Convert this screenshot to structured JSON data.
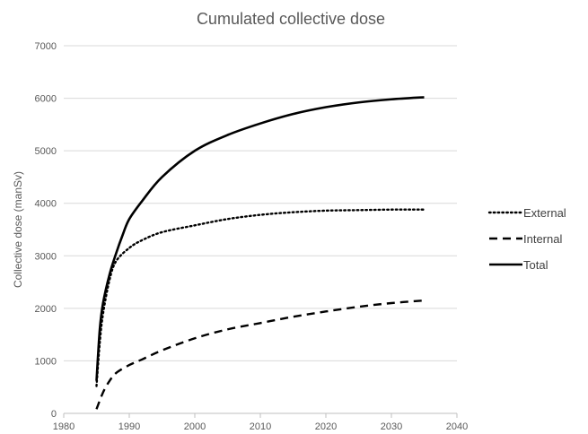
{
  "chart_data": {
    "type": "line",
    "title": "Cumulated collective dose",
    "xlabel": "",
    "ylabel": "Collective dose (manSv)",
    "xlim": [
      1980,
      2040
    ],
    "ylim": [
      0,
      7000
    ],
    "x_ticks": [
      "1980",
      "1990",
      "2000",
      "2010",
      "2020",
      "2030",
      "2040"
    ],
    "y_ticks": [
      "0",
      "1000",
      "2000",
      "3000",
      "4000",
      "5000",
      "6000",
      "7000"
    ],
    "grid": "horizontal",
    "legend_position": "right",
    "series": [
      {
        "name": "External",
        "style": "dotted",
        "x": [
          1985,
          1985.5,
          1986,
          1987,
          1988,
          1990,
          1992,
          1995,
          2000,
          2005,
          2010,
          2015,
          2020,
          2025,
          2030,
          2035
        ],
        "y": [
          520,
          1350,
          1900,
          2550,
          2900,
          3150,
          3300,
          3450,
          3580,
          3700,
          3780,
          3830,
          3860,
          3870,
          3880,
          3880
        ]
      },
      {
        "name": "Internal",
        "style": "dashed",
        "x": [
          1985,
          1986,
          1987,
          1988,
          1990,
          1992,
          1995,
          2000,
          2005,
          2010,
          2015,
          2020,
          2025,
          2030,
          2035
        ],
        "y": [
          80,
          400,
          620,
          770,
          920,
          1030,
          1200,
          1430,
          1600,
          1720,
          1840,
          1940,
          2030,
          2100,
          2150
        ]
      },
      {
        "name": "Total",
        "style": "solid",
        "x": [
          1985,
          1985.5,
          1986,
          1987,
          1988,
          1989,
          1990,
          1992,
          1995,
          2000,
          2005,
          2010,
          2015,
          2020,
          2025,
          2030,
          2035
        ],
        "y": [
          620,
          1600,
          2100,
          2650,
          3050,
          3400,
          3700,
          4050,
          4500,
          5000,
          5300,
          5520,
          5700,
          5830,
          5920,
          5980,
          6020
        ]
      }
    ]
  }
}
